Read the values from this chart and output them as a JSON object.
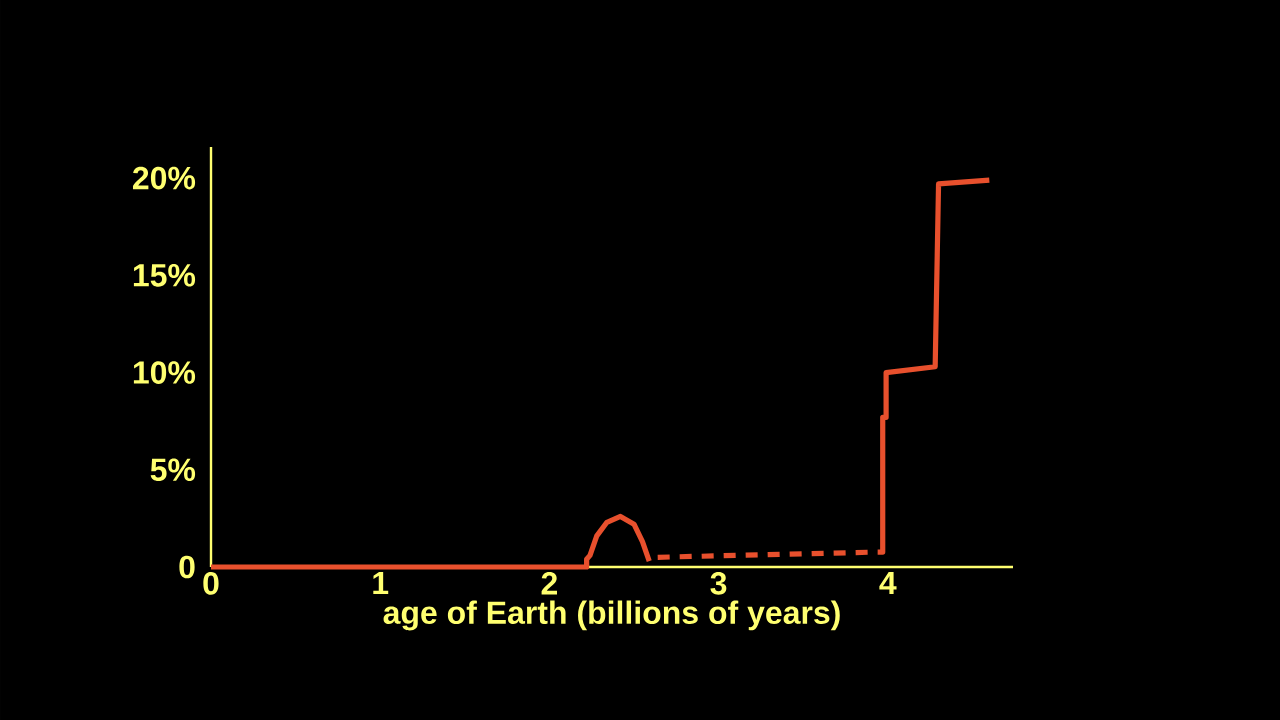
{
  "chart_data": {
    "type": "line",
    "xlabel": "age of Earth (billions of years)",
    "xlim": [
      0,
      4.74
    ],
    "ylim": [
      0,
      21.6
    ],
    "xticks": [
      0,
      1,
      2,
      3,
      4
    ],
    "yticks": [
      {
        "value": 0,
        "label": "0"
      },
      {
        "value": 5,
        "label": "5%"
      },
      {
        "value": 10,
        "label": "10%"
      },
      {
        "value": 15,
        "label": "15%"
      },
      {
        "value": 20,
        "label": "20%"
      }
    ],
    "series": [
      {
        "color": "#e8502d",
        "line_style": "solid",
        "x": [
          0,
          2.22,
          2.22,
          2.24,
          2.28,
          2.34,
          2.42,
          2.5,
          2.55,
          2.59
        ],
        "values": [
          0,
          0,
          0.4,
          0.6,
          1.6,
          2.3,
          2.6,
          2.2,
          1.3,
          0.3
        ]
      },
      {
        "color": "#e8502d",
        "line_style": "dashed",
        "x": [
          2.64,
          3.94
        ],
        "values": [
          0.5,
          0.77
        ]
      },
      {
        "color": "#e8502d",
        "line_style": "solid",
        "x": [
          3.94,
          3.97,
          3.97,
          3.99,
          3.99,
          4.28,
          4.3,
          4.6
        ],
        "values": [
          0.77,
          0.77,
          7.7,
          7.7,
          10.0,
          10.3,
          19.7,
          19.9
        ]
      }
    ]
  }
}
